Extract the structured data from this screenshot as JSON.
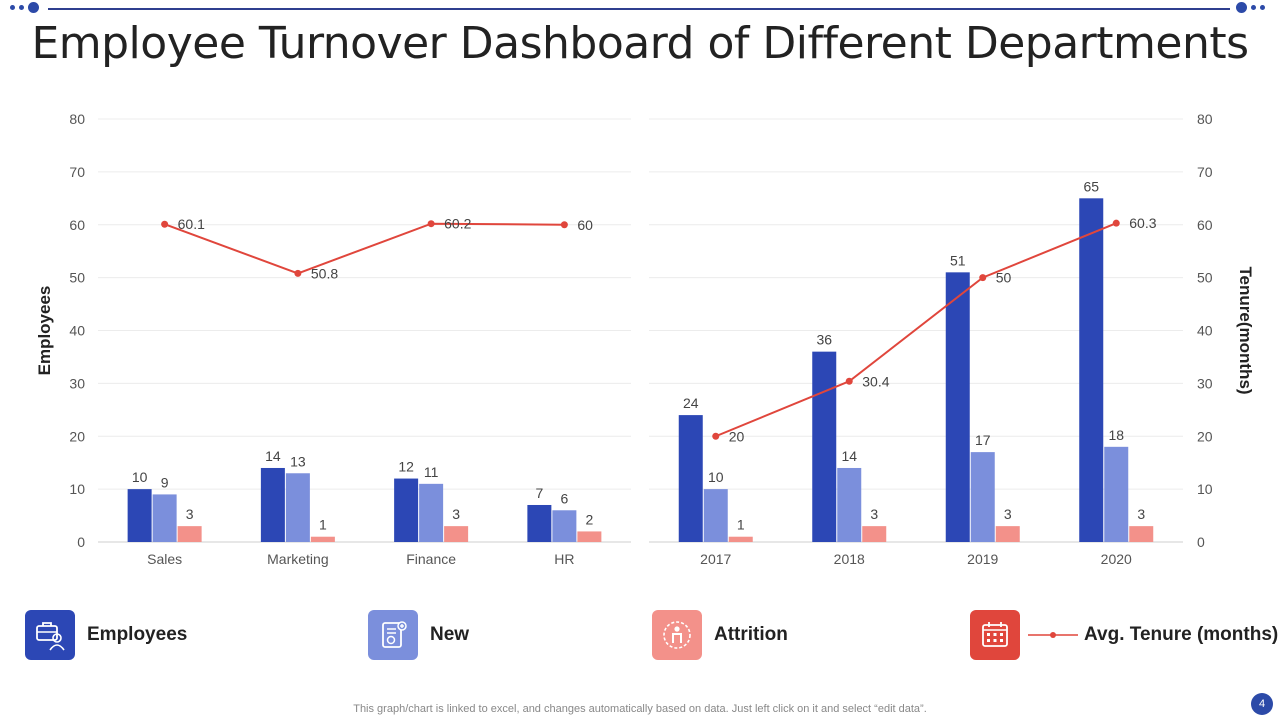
{
  "title": "Employee Turnover Dashboard of Different Departments",
  "colors": {
    "employees": "#2c47b5",
    "new": "#7b8fdc",
    "attrition": "#f3918a",
    "tenure": "#e0463c",
    "grid": "#ececec",
    "axis": "#cfcfcf"
  },
  "chart_data": [
    {
      "type": "bar",
      "title": "",
      "xlabel": "",
      "ylabel": "Employees",
      "ylim": [
        0,
        80
      ],
      "yticks": [
        0,
        10,
        20,
        30,
        40,
        50,
        60,
        70,
        80
      ],
      "categories": [
        "Sales",
        "Marketing",
        "Finance",
        "HR"
      ],
      "series": [
        {
          "name": "Employees",
          "values": [
            10,
            14,
            12,
            7
          ],
          "labels": [
            "10",
            "14",
            "12",
            "7"
          ]
        },
        {
          "name": "New",
          "values": [
            9,
            13,
            11,
            6
          ],
          "labels": [
            "9",
            "13",
            "11",
            "6"
          ]
        },
        {
          "name": "Attrition",
          "values": [
            3,
            1,
            3,
            2
          ],
          "labels": [
            "3",
            "1",
            "3",
            "2"
          ]
        }
      ],
      "line_series": {
        "name": "Avg. Tenure (months)",
        "values": [
          60.1,
          50.8,
          60.2,
          60
        ],
        "labels": [
          "60.1",
          "50.8",
          "60.2",
          "60"
        ]
      }
    },
    {
      "type": "bar",
      "title": "",
      "xlabel": "",
      "ylabel": "Tenure(months)",
      "ylim": [
        0,
        80
      ],
      "yticks": [
        0,
        10,
        20,
        30,
        40,
        50,
        60,
        70,
        80
      ],
      "categories": [
        "2017",
        "2018",
        "2019",
        "2020"
      ],
      "series": [
        {
          "name": "Employees",
          "values": [
            24,
            36,
            51,
            65
          ],
          "labels": [
            "24",
            "36",
            "51",
            "65"
          ]
        },
        {
          "name": "New",
          "values": [
            10,
            14,
            17,
            18
          ],
          "labels": [
            "10",
            "14",
            "17",
            "18"
          ]
        },
        {
          "name": "Attrition",
          "values": [
            1,
            3,
            3,
            3
          ],
          "labels": [
            "1",
            "3",
            "3",
            "3"
          ]
        }
      ],
      "line_series": {
        "name": "Avg. Tenure (months)",
        "values": [
          20,
          30.4,
          50,
          60.3
        ],
        "labels": [
          "20",
          "30.4",
          "50",
          "60.3"
        ]
      }
    }
  ],
  "legend": [
    {
      "label": "Employees",
      "icon": "employee-badge-icon"
    },
    {
      "label": "New",
      "icon": "new-hire-document-icon"
    },
    {
      "label": "Attrition",
      "icon": "person-exit-icon"
    },
    {
      "label": "Avg. Tenure (months)",
      "icon": "calendar-icon"
    }
  ],
  "footer": "This graph/chart is linked to excel,  and changes automatically based on data. Just left click on it and select “edit data”.",
  "page_number": "4"
}
